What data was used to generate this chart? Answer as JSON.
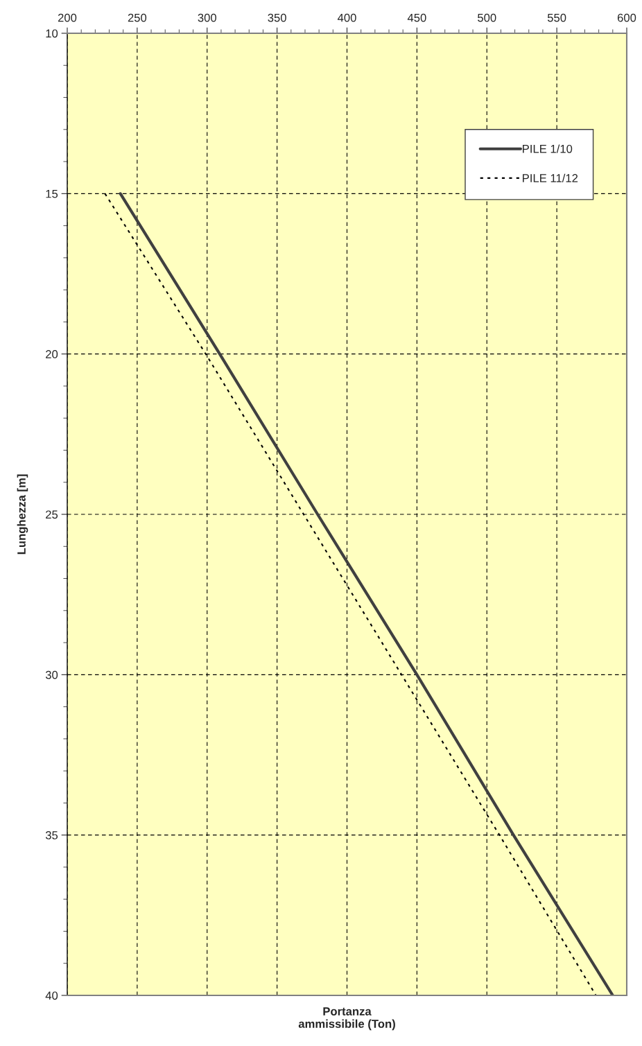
{
  "chart_data": {
    "type": "line",
    "xlabel": "Portanza\nammissibile (Ton)",
    "ylabel": "Lunghezza [m]",
    "series": [
      {
        "name": "PILE 1/10",
        "color": "#404040",
        "line_style": "solid",
        "x": [
          238,
          309,
          379,
          450,
          519,
          590
        ],
        "values": [
          15,
          20,
          25,
          30,
          35,
          40
        ]
      },
      {
        "name": "PILE 11/12",
        "color": "#000000",
        "line_style": "dotted",
        "x": [
          227,
          299,
          369,
          439,
          509,
          578
        ],
        "values": [
          15,
          20,
          25,
          30,
          35,
          40
        ]
      }
    ],
    "xlim": [
      200,
      600
    ],
    "ylim": [
      40,
      10
    ],
    "xticks": [
      200,
      {
        "value": 210,
        "label": null
      },
      {
        "value": 220,
        "label": null
      },
      {
        "value": 230,
        "label": null
      },
      {
        "value": 240,
        "label": null
      },
      250,
      {
        "value": 260,
        "label": null
      },
      {
        "value": 270,
        "label": null
      },
      {
        "value": 280,
        "label": null
      },
      {
        "value": 290,
        "label": null
      },
      300,
      {
        "value": 310,
        "label": null
      },
      {
        "value": 320,
        "label": null
      },
      {
        "value": 330,
        "label": null
      },
      {
        "value": 340,
        "label": null
      },
      350,
      {
        "value": 360,
        "label": null
      },
      {
        "value": 370,
        "label": null
      },
      {
        "value": 380,
        "label": null
      },
      {
        "value": 390,
        "label": null
      },
      400,
      {
        "value": 410,
        "label": null
      },
      {
        "value": 420,
        "label": null
      },
      {
        "value": 430,
        "label": null
      },
      {
        "value": 440,
        "label": null
      },
      450,
      {
        "value": 460,
        "label": null
      },
      {
        "value": 470,
        "label": null
      },
      {
        "value": 480,
        "label": null
      },
      {
        "value": 490,
        "label": null
      },
      500,
      {
        "value": 510,
        "label": null
      },
      {
        "value": 520,
        "label": null
      },
      {
        "value": 530,
        "label": null
      },
      {
        "value": 540,
        "label": null
      },
      550,
      {
        "value": 560,
        "label": null
      },
      {
        "value": 570,
        "label": null
      },
      {
        "value": 580,
        "label": null
      },
      {
        "value": 590,
        "label": null
      },
      600
    ],
    "yticks": [
      10,
      {
        "value": 11,
        "label": null
      },
      {
        "value": 12,
        "label": null
      },
      {
        "value": 13,
        "label": null
      },
      {
        "value": 14,
        "label": null
      },
      15,
      {
        "value": 16,
        "label": null
      },
      {
        "value": 17,
        "label": null
      },
      {
        "value": 18,
        "label": null
      },
      {
        "value": 19,
        "label": null
      },
      20,
      {
        "value": 21,
        "label": null
      },
      {
        "value": 22,
        "label": null
      },
      {
        "value": 23,
        "label": null
      },
      {
        "value": 24,
        "label": null
      },
      25,
      {
        "value": 26,
        "label": null
      },
      {
        "value": 27,
        "label": null
      },
      {
        "value": 28,
        "label": null
      },
      {
        "value": 29,
        "label": null
      },
      30,
      {
        "value": 31,
        "label": null
      },
      {
        "value": 32,
        "label": null
      },
      {
        "value": 33,
        "label": null
      },
      {
        "value": 34,
        "label": null
      },
      35,
      {
        "value": 36,
        "label": null
      },
      {
        "value": 37,
        "label": null
      },
      {
        "value": 38,
        "label": null
      },
      {
        "value": 39,
        "label": null
      },
      40
    ],
    "grid": true,
    "legend": "top right",
    "marker": "none"
  }
}
